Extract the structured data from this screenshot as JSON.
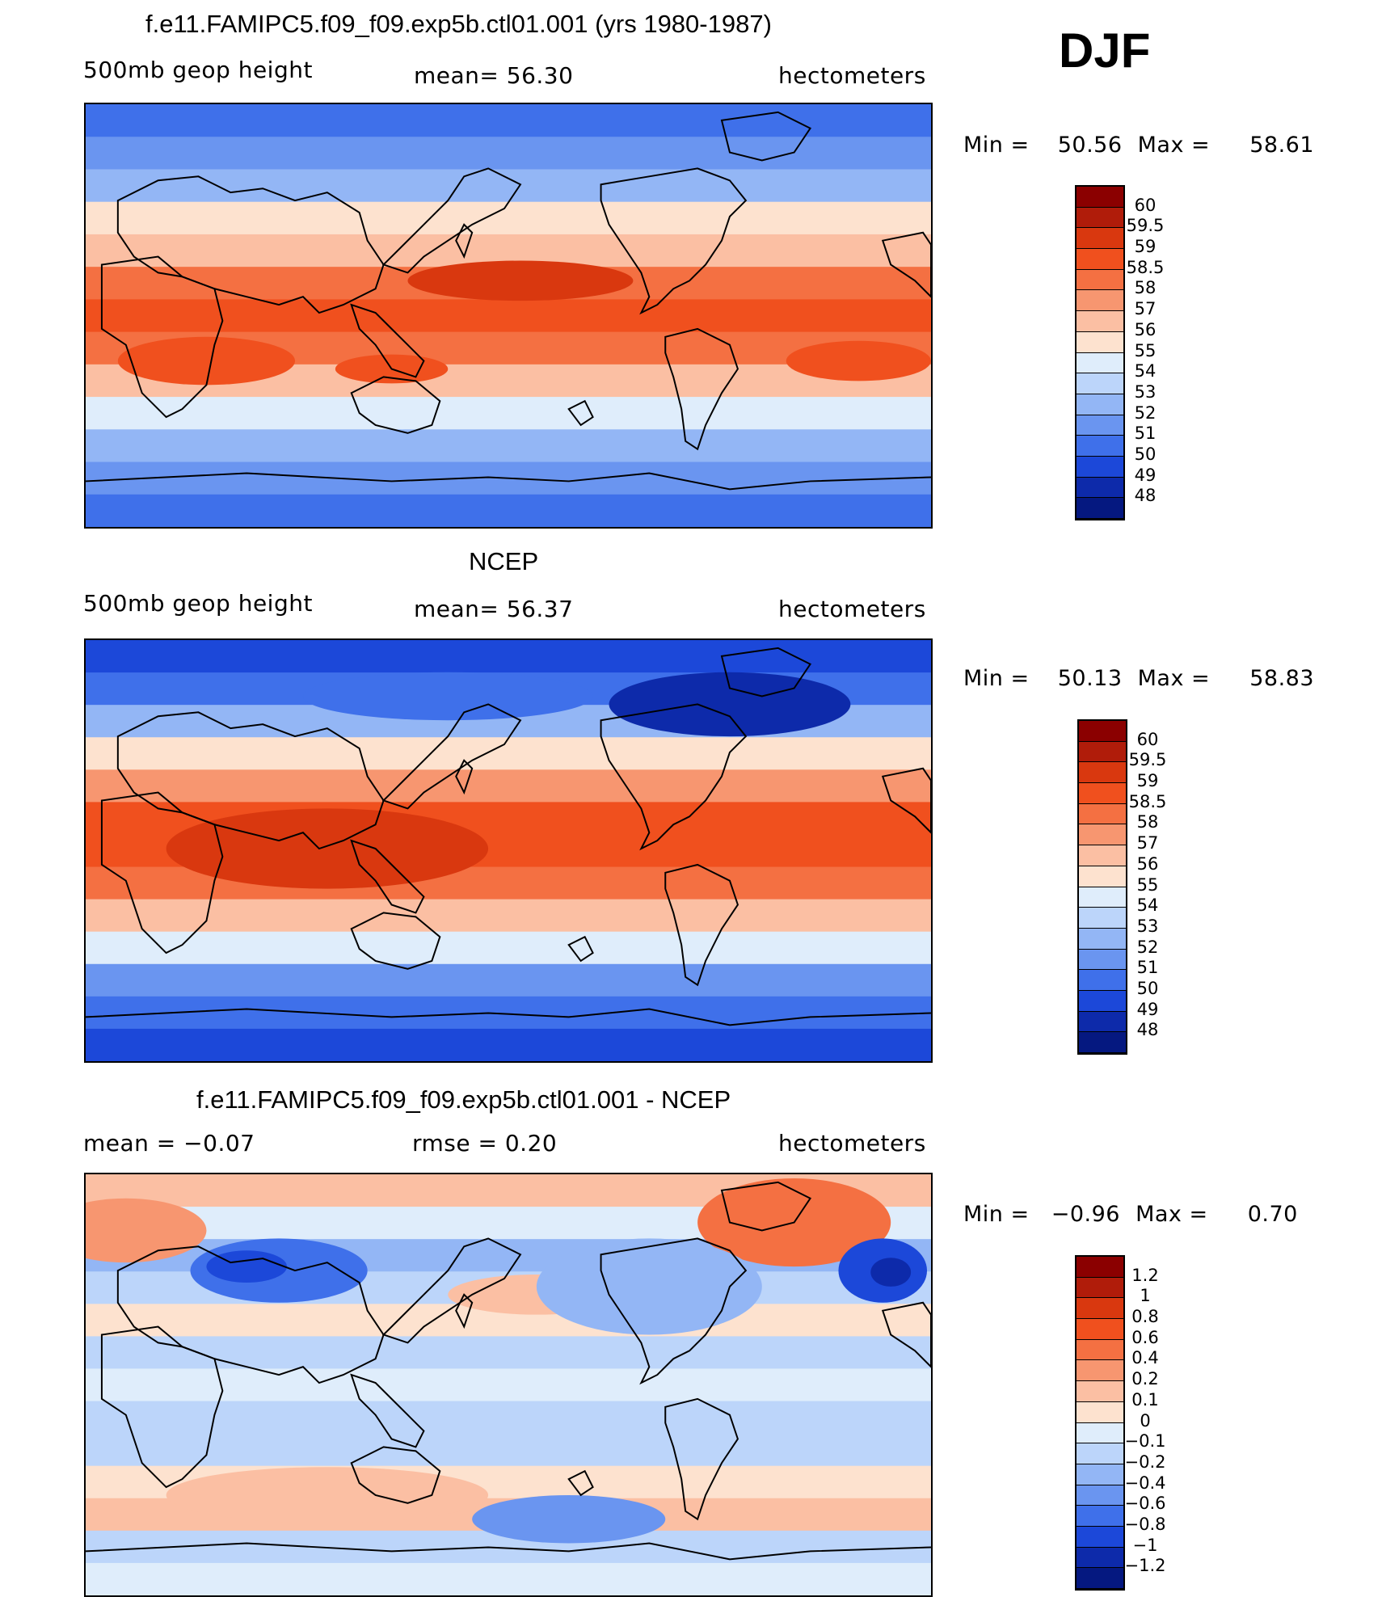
{
  "season": "DJF",
  "panels": [
    {
      "title": "f.e11.FAMIPC5.f09_f09.exp5b.ctl01.001 (yrs 1980-1987)",
      "left_label": "500mb geop height",
      "center_label": "mean=   56.30",
      "right_label": "hectometers",
      "min_label": "Min =",
      "min_value": "50.56",
      "max_label": "Max =",
      "max_value": "58.61",
      "colorbar": {
        "labels": [
          "60",
          "59.5",
          "59",
          "58.5",
          "58",
          "57",
          "56",
          "55",
          "54",
          "53",
          "52",
          "51",
          "50",
          "49",
          "48"
        ],
        "colors": [
          "#8b0000",
          "#b01c0a",
          "#d9380f",
          "#f0501e",
          "#f47042",
          "#f79670",
          "#fbbfa3",
          "#fde2cf",
          "#dfedfb",
          "#bcd5fa",
          "#93b6f5",
          "#6a95f0",
          "#3f70ea",
          "#1c48d9",
          "#0d2aaa",
          "#051880"
        ]
      },
      "zones": [
        "#3f70ea",
        "#6a95f0",
        "#93b6f5",
        "#fde2cf",
        "#fbbfa3",
        "#f47042",
        "#f0501e",
        "#f47042",
        "#fbbfa3",
        "#dfedfb",
        "#93b6f5",
        "#6a95f0",
        "#3f70ea"
      ]
    },
    {
      "title": "NCEP",
      "left_label": "500mb geop height",
      "center_label": "mean=   56.37",
      "right_label": "hectometers",
      "min_label": "Min =",
      "min_value": "50.13",
      "max_label": "Max =",
      "max_value": "58.83",
      "colorbar": {
        "labels": [
          "60",
          "59.5",
          "59",
          "58.5",
          "58",
          "57",
          "56",
          "55",
          "54",
          "53",
          "52",
          "51",
          "50",
          "49",
          "48"
        ],
        "colors": [
          "#8b0000",
          "#b01c0a",
          "#d9380f",
          "#f0501e",
          "#f47042",
          "#f79670",
          "#fbbfa3",
          "#fde2cf",
          "#dfedfb",
          "#bcd5fa",
          "#93b6f5",
          "#6a95f0",
          "#3f70ea",
          "#1c48d9",
          "#0d2aaa",
          "#051880"
        ]
      },
      "zones": [
        "#1c48d9",
        "#3f70ea",
        "#93b6f5",
        "#fde2cf",
        "#f79670",
        "#f0501e",
        "#f0501e",
        "#f47042",
        "#fbbfa3",
        "#dfedfb",
        "#6a95f0",
        "#3f70ea",
        "#1c48d9"
      ]
    },
    {
      "title": "f.e11.FAMIPC5.f09_f09.exp5b.ctl01.001 - NCEP",
      "left_label": "mean =    −0.07",
      "center_label": "rmse =     0.20",
      "right_label": "hectometers",
      "min_label": "Min =",
      "min_value": "−0.96",
      "max_label": "Max =",
      "max_value": "0.70",
      "colorbar": {
        "labels": [
          "1.2",
          "1",
          "0.8",
          "0.6",
          "0.4",
          "0.2",
          "0.1",
          "0",
          "−0.1",
          "−0.2",
          "−0.4",
          "−0.6",
          "−0.8",
          "−1",
          "−1.2"
        ],
        "colors": [
          "#8b0000",
          "#b01c0a",
          "#d9380f",
          "#f0501e",
          "#f47042",
          "#f79670",
          "#fbbfa3",
          "#fde2cf",
          "#dfedfb",
          "#bcd5fa",
          "#93b6f5",
          "#6a95f0",
          "#3f70ea",
          "#1c48d9",
          "#0d2aaa",
          "#051880"
        ]
      },
      "zones": [
        "#fbbfa3",
        "#dfedfb",
        "#93b6f5",
        "#bcd5fa",
        "#fde2cf",
        "#bcd5fa",
        "#dfedfb",
        "#bcd5fa",
        "#bcd5fa",
        "#fde2cf",
        "#fbbfa3",
        "#bcd5fa",
        "#dfedfb"
      ]
    }
  ]
}
